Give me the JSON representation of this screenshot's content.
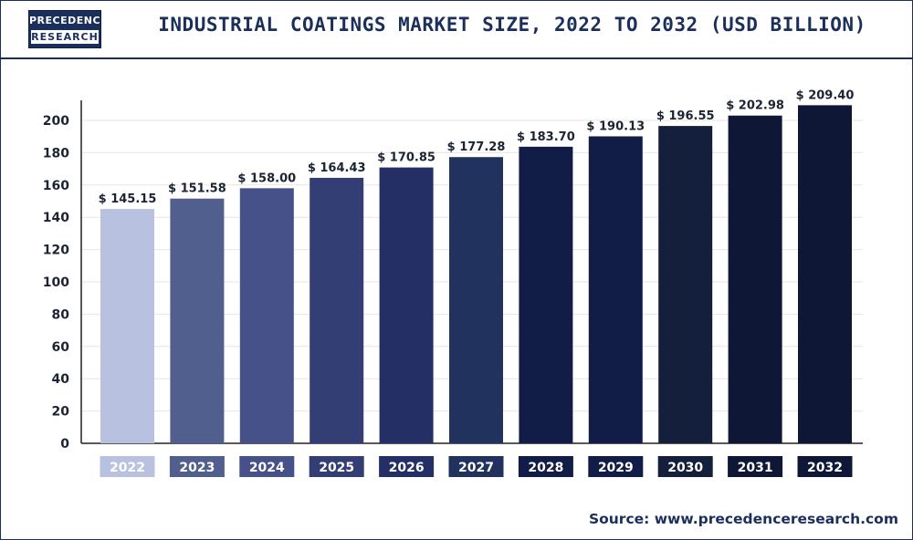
{
  "brand": {
    "line1": "PRECEDENCE",
    "line2": "RESEARCH"
  },
  "source": "Source: www.precedenceresearch.com",
  "chart_data": {
    "type": "bar",
    "title": "INDUSTRIAL COATINGS MARKET SIZE, 2022 TO 2032 (USD BILLION)",
    "xlabel": "",
    "ylabel": "",
    "categories": [
      "2022",
      "2023",
      "2024",
      "2025",
      "2026",
      "2027",
      "2028",
      "2029",
      "2030",
      "2031",
      "2032"
    ],
    "values": [
      145.15,
      151.58,
      158.0,
      164.43,
      170.85,
      177.28,
      183.7,
      190.13,
      196.55,
      202.98,
      209.4
    ],
    "data_labels": [
      "$ 145.15",
      "$ 151.58",
      "$ 158.00",
      "$ 164.43",
      "$ 170.85",
      "$ 177.28",
      "$ 183.70",
      "$ 190.13",
      "$ 196.55",
      "$ 202.98",
      "$ 209.40"
    ],
    "ylim": [
      0,
      200
    ],
    "yticks": [
      0,
      20,
      40,
      60,
      80,
      100,
      120,
      140,
      160,
      180,
      200
    ],
    "grid": true,
    "legend": "none",
    "bar_colors": [
      "#b8c2e0",
      "#515f8f",
      "#46518a",
      "#333e74",
      "#242f66",
      "#22325e",
      "#121d47",
      "#121d47",
      "#141f3c",
      "#0f1736",
      "#0f1736"
    ]
  }
}
